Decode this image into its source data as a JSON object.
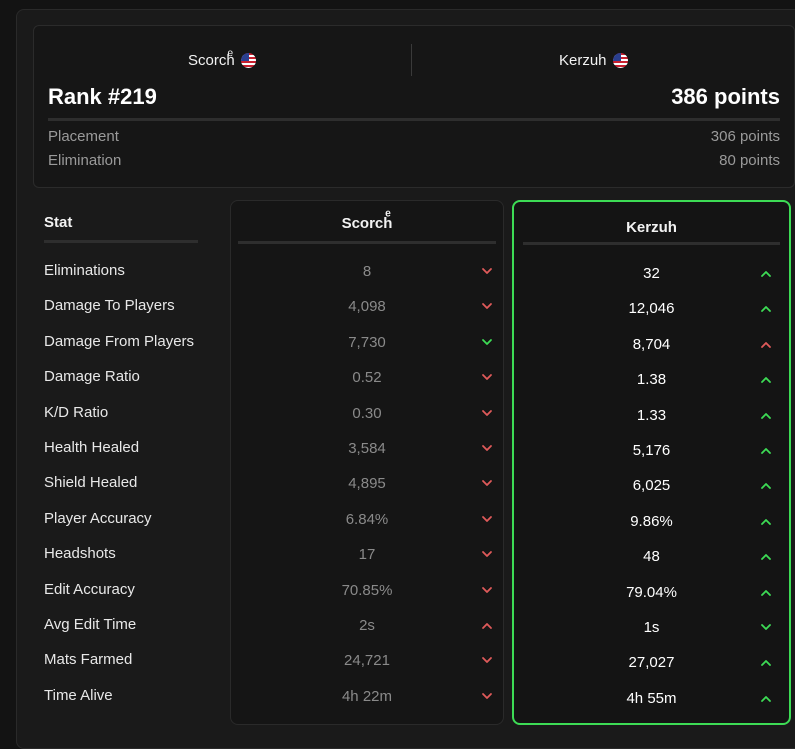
{
  "summary": {
    "player1": {
      "name": "Scorchͤ",
      "flag": "us-flag-icon"
    },
    "player2": {
      "name": "Kerzuh",
      "flag": "us-flag-icon"
    },
    "rank": "Rank #219",
    "total_points": "386 points",
    "breakdown": [
      {
        "label": "Placement",
        "value": "306 points"
      },
      {
        "label": "Elimination",
        "value": "80 points"
      }
    ]
  },
  "table": {
    "stat_header": "Stat",
    "player1_header": "Scorchͤ",
    "player2_header": "Kerzuh",
    "colors": {
      "up": "#3ddc55",
      "down": "#e05a5a",
      "highlight_border": "#3ddc55"
    },
    "rows": [
      {
        "stat": "Eliminations",
        "p1": "8",
        "p1_arrow": "down",
        "p1_arrow_color": "red",
        "p2": "32",
        "p2_arrow": "up",
        "p2_arrow_color": "green"
      },
      {
        "stat": "Damage To Players",
        "p1": "4,098",
        "p1_arrow": "down",
        "p1_arrow_color": "red",
        "p2": "12,046",
        "p2_arrow": "up",
        "p2_arrow_color": "green"
      },
      {
        "stat": "Damage From Players",
        "p1": "7,730",
        "p1_arrow": "down",
        "p1_arrow_color": "green",
        "p2": "8,704",
        "p2_arrow": "up",
        "p2_arrow_color": "red"
      },
      {
        "stat": "Damage Ratio",
        "p1": "0.52",
        "p1_arrow": "down",
        "p1_arrow_color": "red",
        "p2": "1.38",
        "p2_arrow": "up",
        "p2_arrow_color": "green"
      },
      {
        "stat": "K/D Ratio",
        "p1": "0.30",
        "p1_arrow": "down",
        "p1_arrow_color": "red",
        "p2": "1.33",
        "p2_arrow": "up",
        "p2_arrow_color": "green"
      },
      {
        "stat": "Health Healed",
        "p1": "3,584",
        "p1_arrow": "down",
        "p1_arrow_color": "red",
        "p2": "5,176",
        "p2_arrow": "up",
        "p2_arrow_color": "green"
      },
      {
        "stat": "Shield Healed",
        "p1": "4,895",
        "p1_arrow": "down",
        "p1_arrow_color": "red",
        "p2": "6,025",
        "p2_arrow": "up",
        "p2_arrow_color": "green"
      },
      {
        "stat": "Player Accuracy",
        "p1": "6.84%",
        "p1_arrow": "down",
        "p1_arrow_color": "red",
        "p2": "9.86%",
        "p2_arrow": "up",
        "p2_arrow_color": "green"
      },
      {
        "stat": "Headshots",
        "p1": "17",
        "p1_arrow": "down",
        "p1_arrow_color": "red",
        "p2": "48",
        "p2_arrow": "up",
        "p2_arrow_color": "green"
      },
      {
        "stat": "Edit Accuracy",
        "p1": "70.85%",
        "p1_arrow": "down",
        "p1_arrow_color": "red",
        "p2": "79.04%",
        "p2_arrow": "up",
        "p2_arrow_color": "green"
      },
      {
        "stat": "Avg Edit Time",
        "p1": "2s",
        "p1_arrow": "up",
        "p1_arrow_color": "red",
        "p2": "1s",
        "p2_arrow": "down",
        "p2_arrow_color": "green"
      },
      {
        "stat": "Mats Farmed",
        "p1": "24,721",
        "p1_arrow": "down",
        "p1_arrow_color": "red",
        "p2": "27,027",
        "p2_arrow": "up",
        "p2_arrow_color": "green"
      },
      {
        "stat": "Time Alive",
        "p1": "4h 22m",
        "p1_arrow": "down",
        "p1_arrow_color": "red",
        "p2": "4h 55m",
        "p2_arrow": "up",
        "p2_arrow_color": "green"
      }
    ]
  }
}
